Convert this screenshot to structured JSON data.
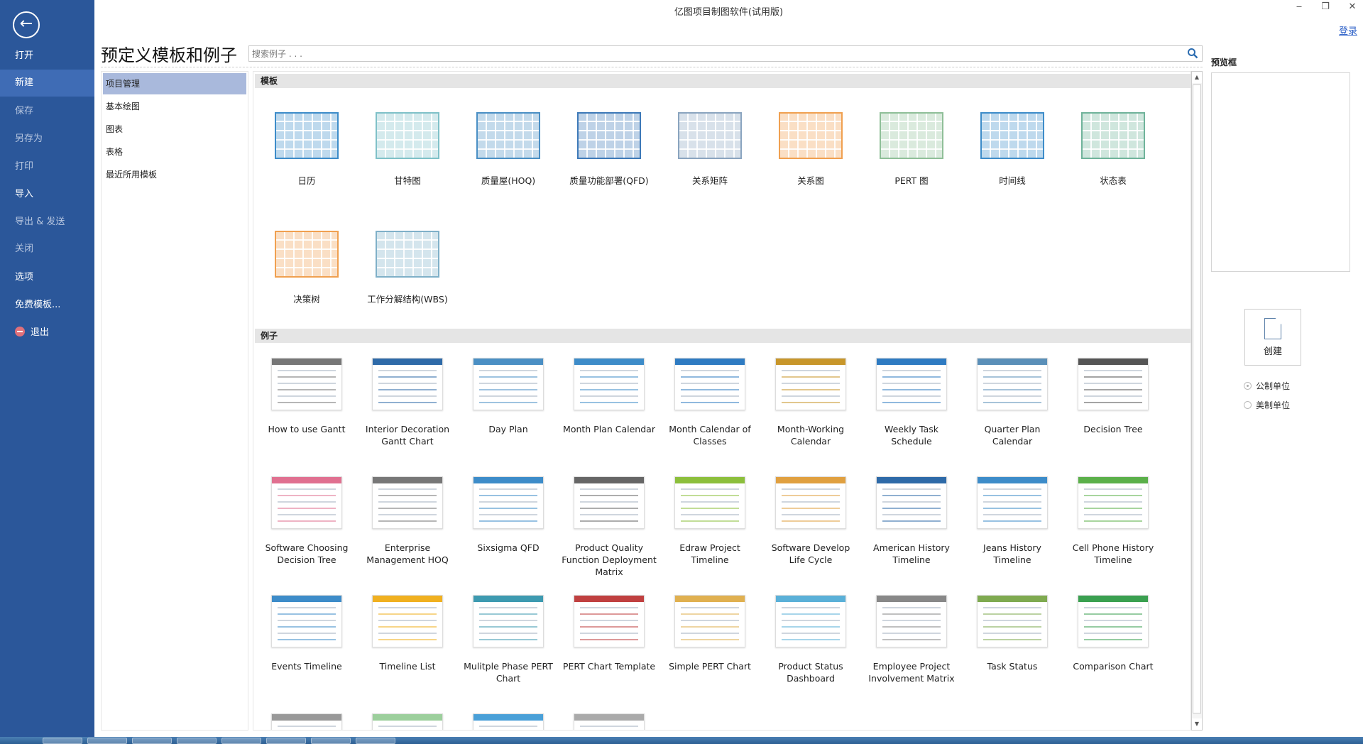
{
  "window": {
    "title": "亿图项目制图软件(试用版)",
    "login": "登录",
    "minimize": "‒",
    "restore": "❐",
    "close": "✕"
  },
  "sidebar": {
    "items": [
      {
        "label": "打开",
        "state": "normal"
      },
      {
        "label": "新建",
        "state": "active"
      },
      {
        "label": "保存",
        "state": "dim"
      },
      {
        "label": "另存为",
        "state": "dim"
      },
      {
        "label": "打印",
        "state": "dim"
      },
      {
        "label": "导入",
        "state": "normal"
      },
      {
        "label": "导出 & 发送",
        "state": "dim"
      },
      {
        "label": "关闭",
        "state": "dim"
      },
      {
        "label": "选项",
        "state": "normal"
      },
      {
        "label": "免费模板...",
        "state": "normal"
      },
      {
        "label": "退出",
        "state": "normal"
      }
    ]
  },
  "main": {
    "heading": "预定义模板和例子",
    "search_placeholder": "搜索例子 . . .",
    "categories": [
      {
        "label": "项目管理",
        "active": true
      },
      {
        "label": "基本绘图",
        "active": false
      },
      {
        "label": "图表",
        "active": false
      },
      {
        "label": "表格",
        "active": false
      },
      {
        "label": "最近所用模板",
        "active": false
      }
    ],
    "templates_header": "模板",
    "templates": [
      {
        "label": "日历",
        "color": "#3d8cc9"
      },
      {
        "label": "甘特图",
        "color": "#7fc1c8"
      },
      {
        "label": "质量屋(HOQ)",
        "color": "#4a8fc4"
      },
      {
        "label": "质量功能部署(QFD)",
        "color": "#3d79b8"
      },
      {
        "label": "关系矩阵",
        "color": "#8aa4bf"
      },
      {
        "label": "关系图",
        "color": "#f0a050"
      },
      {
        "label": "PERT 图",
        "color": "#8fbf98"
      },
      {
        "label": "时间线",
        "color": "#3d8cc9"
      },
      {
        "label": "状态表",
        "color": "#6fb39a"
      },
      {
        "label": "决策树",
        "color": "#f0a050"
      },
      {
        "label": "工作分解结构(WBS)",
        "color": "#7fb0c8"
      }
    ],
    "examples_header": "例子",
    "examples": [
      {
        "label": "How to use Gantt",
        "color": "#777777"
      },
      {
        "label": "Interior Decoration Gantt Chart",
        "color": "#2e6aa8"
      },
      {
        "label": "Day Plan",
        "color": "#4a8fc4"
      },
      {
        "label": "Month Plan Calendar",
        "color": "#3d8cc9"
      },
      {
        "label": "Month Calendar of Classes",
        "color": "#2e7bc2"
      },
      {
        "label": "Month-Working Calendar",
        "color": "#c8962a"
      },
      {
        "label": "Weekly Task Schedule",
        "color": "#2e7bc2"
      },
      {
        "label": "Quarter Plan Calendar",
        "color": "#5a8fb8"
      },
      {
        "label": "Decision Tree",
        "color": "#555555"
      },
      {
        "label": "Software Choosing Decision Tree",
        "color": "#e07090"
      },
      {
        "label": "Enterprise Management HOQ",
        "color": "#777777"
      },
      {
        "label": "Sixsigma QFD",
        "color": "#3d8cc9"
      },
      {
        "label": "Product Quality Function Deployment Matrix",
        "color": "#666666"
      },
      {
        "label": "Edraw Project Timeline",
        "color": "#8cbf3c"
      },
      {
        "label": "Software Develop Life Cycle",
        "color": "#e0a040"
      },
      {
        "label": "American History Timeline",
        "color": "#2e6aa8"
      },
      {
        "label": "Jeans History Timeline",
        "color": "#3d8cc9"
      },
      {
        "label": "Cell Phone History Timeline",
        "color": "#5bb04a"
      },
      {
        "label": "Events Timeline",
        "color": "#3d8cc9"
      },
      {
        "label": "Timeline List",
        "color": "#f0b020"
      },
      {
        "label": "Mulitple Phase PERT Chart",
        "color": "#3d9ab0"
      },
      {
        "label": "PERT Chart Template",
        "color": "#c04040"
      },
      {
        "label": "Simple PERT Chart",
        "color": "#e0b050"
      },
      {
        "label": "Product Status Dashboard",
        "color": "#5ab0d8"
      },
      {
        "label": "Employee Project Involvement Matrix",
        "color": "#888888"
      },
      {
        "label": "Task Status",
        "color": "#7faa50"
      },
      {
        "label": "Comparison Chart",
        "color": "#3aa050"
      },
      {
        "label": "",
        "color": "#999999"
      },
      {
        "label": "",
        "color": "#9ccf9c"
      },
      {
        "label": "",
        "color": "#4aa0d8"
      },
      {
        "label": "",
        "color": "#aaaaaa"
      }
    ]
  },
  "right_panel": {
    "preview_label": "预览框",
    "create_label": "创建",
    "units": [
      {
        "label": "公制单位",
        "selected": true
      },
      {
        "label": "美制单位",
        "selected": false
      }
    ]
  }
}
